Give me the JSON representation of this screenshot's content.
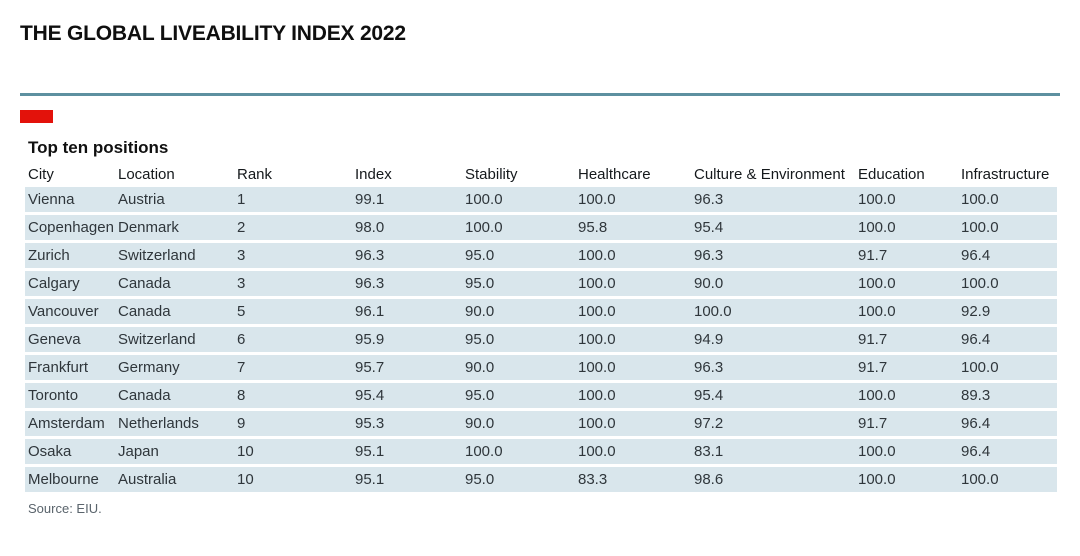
{
  "chart_data": {
    "type": "table",
    "title": "THE GLOBAL LIVEABILITY INDEX 2022",
    "subtitle": "Top ten positions",
    "source": "Source: EIU.",
    "columns": [
      "City",
      "Location",
      "Rank",
      "Index",
      "Stability",
      "Healthcare",
      "Culture & Environment",
      "Education",
      "Infrastructure"
    ],
    "rows": [
      [
        "Vienna",
        "Austria",
        "1",
        "99.1",
        "100.0",
        "100.0",
        "96.3",
        "100.0",
        "100.0"
      ],
      [
        "Copenhagen",
        "Denmark",
        "2",
        "98.0",
        "100.0",
        "95.8",
        "95.4",
        "100.0",
        "100.0"
      ],
      [
        "Zurich",
        "Switzerland",
        "3",
        "96.3",
        "95.0",
        "100.0",
        "96.3",
        "91.7",
        "96.4"
      ],
      [
        "Calgary",
        "Canada",
        "3",
        "96.3",
        "95.0",
        "100.0",
        "90.0",
        "100.0",
        "100.0"
      ],
      [
        "Vancouver",
        "Canada",
        "5",
        "96.1",
        "90.0",
        "100.0",
        "100.0",
        "100.0",
        "92.9"
      ],
      [
        "Geneva",
        "Switzerland",
        "6",
        "95.9",
        "95.0",
        "100.0",
        "94.9",
        "91.7",
        "96.4"
      ],
      [
        "Frankfurt",
        "Germany",
        "7",
        "95.7",
        "90.0",
        "100.0",
        "96.3",
        "91.7",
        "100.0"
      ],
      [
        "Toronto",
        "Canada",
        "8",
        "95.4",
        "95.0",
        "100.0",
        "95.4",
        "100.0",
        "89.3"
      ],
      [
        "Amsterdam",
        "Netherlands",
        "9",
        "95.3",
        "90.0",
        "100.0",
        "97.2",
        "91.7",
        "96.4"
      ],
      [
        "Osaka",
        "Japan",
        "10",
        "95.1",
        "100.0",
        "100.0",
        "83.1",
        "100.0",
        "96.4"
      ],
      [
        "Melbourne",
        "Australia",
        "10",
        "95.1",
        "95.0",
        "83.3",
        "98.6",
        "100.0",
        "100.0"
      ]
    ]
  },
  "colors": {
    "accent_red": "#e3120b",
    "rule_teal": "#5d90a0",
    "row_bg": "#d9e6ec"
  }
}
